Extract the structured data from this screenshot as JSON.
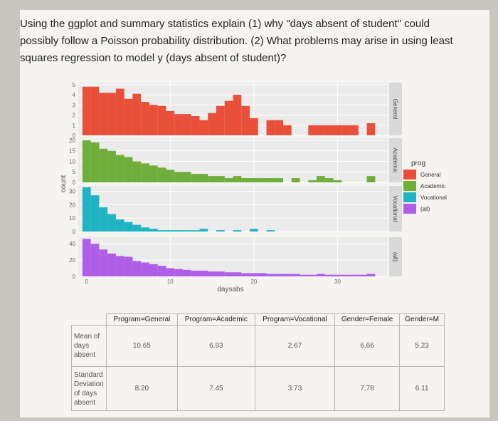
{
  "question": {
    "text": "Using the ggplot and summary statistics explain (1) why \"days absent of student\" could possibly follow a Poisson probability distribution. (2) What problems may arise in using least squares regression to model y (days absent of student)?"
  },
  "chart_data": {
    "type": "bar",
    "xlabel": "daysabs",
    "ylabel": "count",
    "x_ticks": [
      0,
      10,
      20,
      30
    ],
    "xlim": [
      -1,
      36
    ],
    "colors": {
      "General": "#e8503a",
      "Academic": "#6fae3a",
      "Vocational": "#1fb3c3",
      "(all)": "#b05ee8"
    },
    "legend": {
      "title": "prog",
      "entries": [
        "General",
        "Academic",
        "Vocational",
        "(all)"
      ],
      "placement": "right"
    },
    "panels": [
      {
        "name": "General",
        "strip": "General",
        "y_ticks": [
          0,
          1,
          2,
          3,
          4,
          5
        ],
        "ylim": [
          0,
          5.2
        ],
        "x": [
          0,
          1,
          2,
          3,
          4,
          5,
          6,
          7,
          8,
          9,
          10,
          11,
          12,
          13,
          14,
          15,
          16,
          17,
          18,
          19,
          20,
          22,
          23,
          24,
          27,
          28,
          29,
          30,
          31,
          32,
          34
        ],
        "values": [
          4.8,
          4.8,
          4.2,
          4.2,
          4.6,
          3.6,
          4.1,
          3.3,
          3.0,
          2.9,
          2.4,
          2.1,
          2.1,
          1.9,
          1.5,
          2.2,
          2.9,
          3.4,
          4.0,
          2.9,
          1.7,
          1.5,
          1.5,
          1.0,
          1.0,
          1.0,
          1.0,
          1.0,
          1.0,
          1.0,
          1.2
        ]
      },
      {
        "name": "Academic",
        "strip": "Academic",
        "y_ticks": [
          0,
          5,
          10,
          15,
          20
        ],
        "ylim": [
          0,
          21
        ],
        "x": [
          0,
          1,
          2,
          3,
          4,
          5,
          6,
          7,
          8,
          9,
          10,
          11,
          12,
          13,
          14,
          15,
          16,
          17,
          18,
          19,
          20,
          21,
          22,
          23,
          25,
          27,
          28,
          29,
          30,
          34
        ],
        "values": [
          20,
          19,
          16,
          15,
          13,
          12,
          10,
          9,
          8,
          7,
          6,
          5,
          5,
          4,
          4,
          3,
          3,
          2,
          3,
          2,
          2,
          2,
          2,
          2,
          2,
          1,
          3,
          2,
          1,
          3
        ]
      },
      {
        "name": "Vocational",
        "strip": "Vocational",
        "y_ticks": [
          0,
          10,
          20,
          30
        ],
        "ylim": [
          0,
          34
        ],
        "x": [
          0,
          1,
          2,
          3,
          4,
          5,
          6,
          7,
          8,
          9,
          10,
          11,
          12,
          13,
          14,
          16,
          18,
          20,
          22
        ],
        "values": [
          33,
          27,
          18,
          13,
          9,
          7,
          5,
          3,
          2,
          1,
          1,
          1,
          1,
          1,
          2,
          1,
          1,
          2,
          1
        ]
      },
      {
        "name": "(all)",
        "strip": "(all)",
        "y_ticks": [
          0,
          20,
          40
        ],
        "ylim": [
          0,
          48
        ],
        "x": [
          0,
          1,
          2,
          3,
          4,
          5,
          6,
          7,
          8,
          9,
          10,
          11,
          12,
          13,
          14,
          15,
          16,
          17,
          18,
          19,
          20,
          21,
          22,
          23,
          24,
          25,
          26,
          27,
          28,
          29,
          30,
          31,
          32,
          33,
          34
        ],
        "values": [
          46,
          40,
          33,
          28,
          25,
          24,
          19,
          17,
          15,
          13,
          10,
          9,
          8,
          7,
          7,
          6,
          6,
          5,
          5,
          4,
          4,
          4,
          3,
          3,
          3,
          3,
          2,
          2,
          3,
          2,
          2,
          2,
          2,
          2,
          3
        ]
      }
    ]
  },
  "table": {
    "headers": [
      "Program=General",
      "Program=Academic",
      "Program=Vocational",
      "Gender=Female",
      "Gender=M"
    ],
    "rows": [
      {
        "label": "Mean of days absent",
        "values": [
          "10.65",
          "6.93",
          "2.67",
          "6.66",
          "5.23"
        ]
      },
      {
        "label": "Standard Deviation of days absent",
        "values": [
          "8.20",
          "7.45",
          "3.73",
          "7.78",
          "6.11"
        ]
      }
    ]
  }
}
